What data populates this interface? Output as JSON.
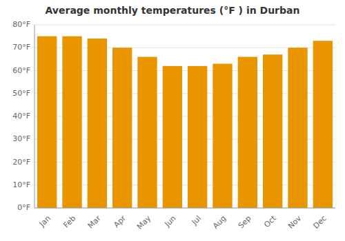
{
  "chart_data": {
    "type": "bar",
    "title": "Average monthly temperatures (°F ) in Durban",
    "categories": [
      "Jan",
      "Feb",
      "Mar",
      "Apr",
      "May",
      "Jun",
      "Jul",
      "Aug",
      "Sep",
      "Oct",
      "Nov",
      "Dec"
    ],
    "values": [
      75,
      75,
      74,
      70,
      66,
      62,
      62,
      63,
      66,
      67,
      70,
      73
    ],
    "color": "#E89500",
    "ylim": [
      0,
      80
    ],
    "yticks": [
      {
        "value": 0,
        "label": "0°F"
      },
      {
        "value": 10,
        "label": "10°F"
      },
      {
        "value": 20,
        "label": "20°F"
      },
      {
        "value": 30,
        "label": "30°F"
      },
      {
        "value": 40,
        "label": "40°F"
      },
      {
        "value": 50,
        "label": "50°F"
      },
      {
        "value": 60,
        "label": "60°F"
      },
      {
        "value": 70,
        "label": "70°F"
      },
      {
        "value": 80,
        "label": "80°F"
      }
    ],
    "grid": true
  }
}
